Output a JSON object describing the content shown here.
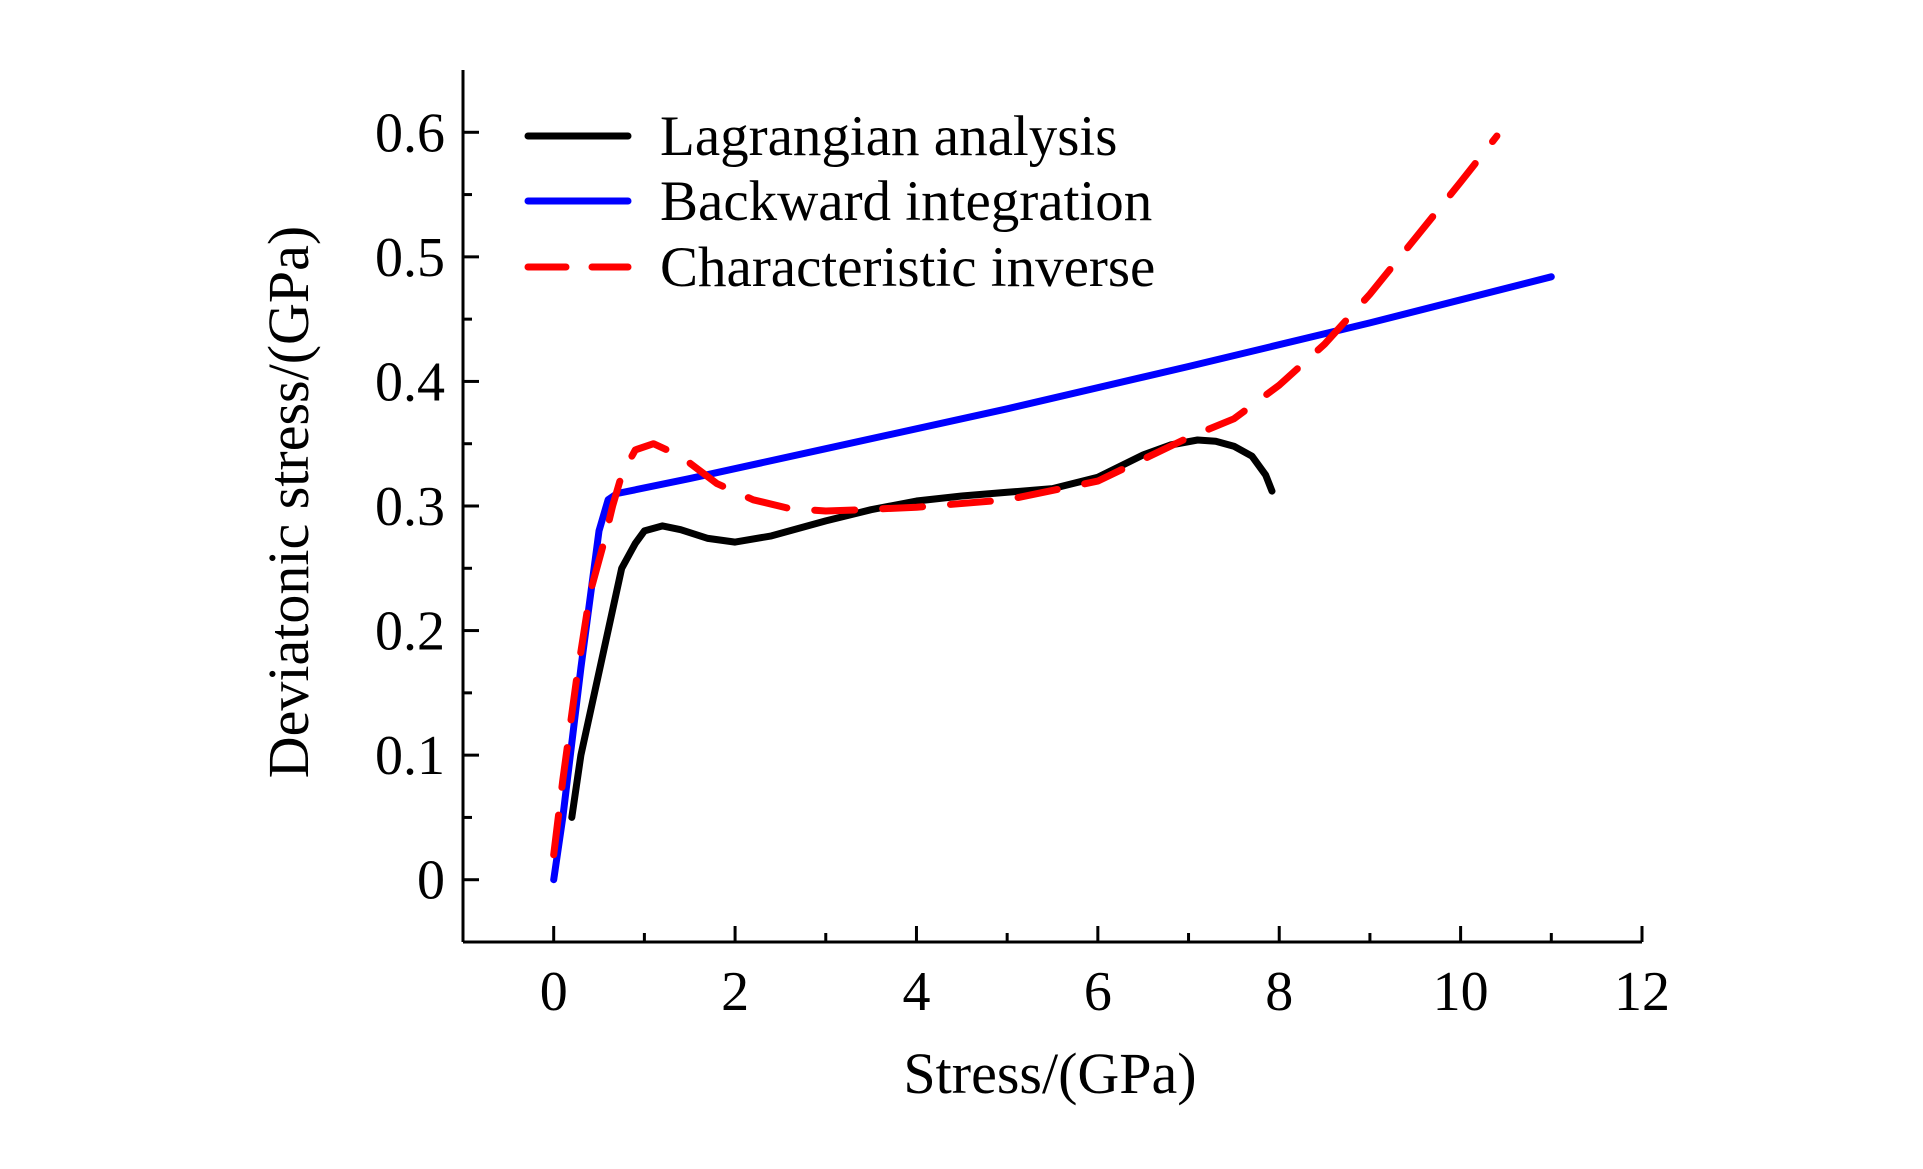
{
  "chart_data": {
    "type": "line",
    "title": "",
    "xlabel": "Stress/(GPa)",
    "ylabel": "Deviatonic stress/(GPa)",
    "xlim": [
      -1,
      12
    ],
    "ylim": [
      -0.05,
      0.65
    ],
    "xticks": [
      0,
      2,
      4,
      6,
      8,
      10,
      12
    ],
    "yticks": [
      0,
      0.1,
      0.2,
      0.3,
      0.4,
      0.5,
      0.6
    ],
    "xtick_labels": [
      "0",
      "2",
      "4",
      "6",
      "8",
      "10",
      "12"
    ],
    "ytick_labels": [
      "0",
      "0.1",
      "0.2",
      "0.3",
      "0.4",
      "0.5",
      "0.6"
    ],
    "grid": false,
    "legend_position": "top-left",
    "series": [
      {
        "name": "Lagrangian analysis",
        "color": "#000000",
        "style": "solid",
        "x": [
          0.2,
          0.3,
          0.45,
          0.6,
          0.75,
          0.9,
          1.0,
          1.2,
          1.4,
          1.7,
          2.0,
          2.4,
          3.0,
          3.5,
          4.0,
          4.5,
          5.0,
          5.5,
          6.0,
          6.5,
          6.8,
          7.1,
          7.3,
          7.5,
          7.7,
          7.85,
          7.92
        ],
        "y": [
          0.05,
          0.1,
          0.15,
          0.2,
          0.25,
          0.27,
          0.28,
          0.284,
          0.281,
          0.274,
          0.271,
          0.276,
          0.288,
          0.297,
          0.304,
          0.308,
          0.311,
          0.314,
          0.323,
          0.341,
          0.349,
          0.353,
          0.352,
          0.348,
          0.34,
          0.325,
          0.312
        ]
      },
      {
        "name": "Backward integration",
        "color": "#0000ff",
        "style": "solid",
        "x": [
          0.0,
          0.1,
          0.3,
          0.5,
          0.6,
          0.7,
          1.5,
          3.0,
          5.0,
          7.0,
          9.0,
          11.0
        ],
        "y": [
          0.0,
          0.05,
          0.17,
          0.28,
          0.305,
          0.31,
          0.322,
          0.346,
          0.378,
          0.412,
          0.447,
          0.484
        ]
      },
      {
        "name": "Characteristic inverse",
        "color": "#ff0000",
        "style": "dashed",
        "x": [
          0.0,
          0.1,
          0.25,
          0.4,
          0.55,
          0.65,
          0.75,
          0.9,
          1.1,
          1.4,
          1.8,
          2.2,
          2.6,
          3.0,
          3.4,
          4.0,
          5.0,
          6.0,
          7.0,
          7.5,
          8.0,
          8.5,
          9.0,
          9.5,
          10.0,
          10.4
        ],
        "y": [
          0.02,
          0.08,
          0.16,
          0.23,
          0.27,
          0.3,
          0.325,
          0.345,
          0.35,
          0.34,
          0.318,
          0.305,
          0.298,
          0.296,
          0.297,
          0.299,
          0.305,
          0.32,
          0.355,
          0.37,
          0.397,
          0.43,
          0.47,
          0.515,
          0.56,
          0.597
        ]
      }
    ]
  }
}
